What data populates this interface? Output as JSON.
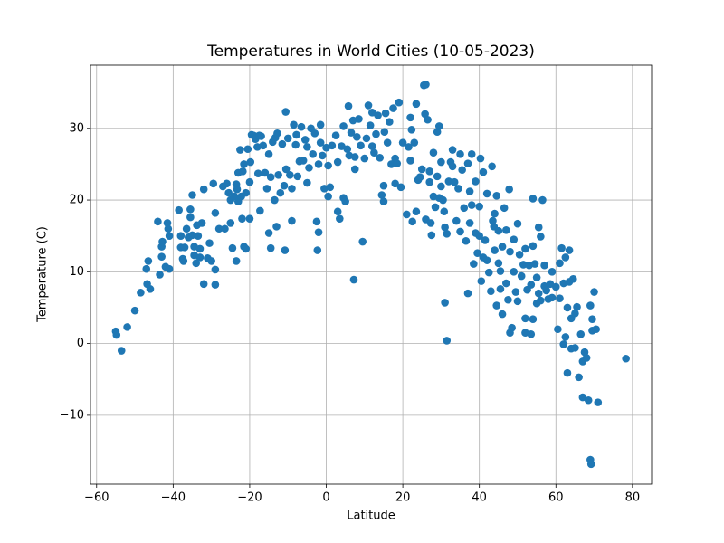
{
  "chart_data": {
    "type": "scatter",
    "title": "Temperatures in World Cities (10-05-2023)",
    "x_label": "Latitude",
    "y_label": "Temperature (C)",
    "color": "#1f77b4",
    "grid": true,
    "xlim": [
      -61.6,
      85.0
    ],
    "ylim": [
      -19.6,
      38.8
    ],
    "xticks": [
      {
        "value": -60,
        "label": "−60"
      },
      {
        "value": -40,
        "label": "−40"
      },
      {
        "value": -20,
        "label": "−20"
      },
      0,
      20,
      40,
      60,
      80
    ],
    "yticks": [
      {
        "value": -10,
        "label": "−10"
      },
      0,
      10,
      20,
      30
    ],
    "x": [
      -55,
      -54.8,
      -53.5,
      -52,
      -50,
      -48.5,
      -47,
      -46.8,
      -46.5,
      -46,
      -44,
      -43.5,
      -43,
      -43,
      -42.8,
      -42,
      -41.5,
      -41.3,
      -41,
      -41,
      -38.5,
      -38,
      -38,
      -37.5,
      -37.3,
      -37,
      -36.5,
      -36,
      -35.5,
      -35.5,
      -35,
      -35,
      -34.5,
      -34.5,
      -34,
      -33.8,
      -33.5,
      -33,
      -33,
      -32.5,
      -32,
      -32,
      -31,
      -30.5,
      -30,
      -29.5,
      -29,
      -29,
      -29,
      -28,
      -27,
      -26.5,
      -26,
      -25.5,
      -25,
      -25,
      -24.5,
      -24,
      -23.5,
      -23.5,
      -23.3,
      -23,
      -23,
      -22.5,
      -22.2,
      -22,
      -21.8,
      -21.5,
      -21.5,
      -21,
      -21,
      -20.5,
      -20,
      -20,
      -19.8,
      -19.5,
      -19,
      -18.5,
      -18,
      -17.8,
      -17.5,
      -17.3,
      -17,
      -16.5,
      -16,
      -15.5,
      -15,
      -15,
      -14.5,
      -14.5,
      -14,
      -13.5,
      -13.3,
      -13,
      -12.8,
      -12.5,
      -12,
      -11.5,
      -11,
      -10.8,
      -10.6,
      -10.5,
      -10,
      -9.5,
      -9,
      -9,
      -8.5,
      -8,
      -7.8,
      -7.5,
      -7,
      -6.5,
      -6,
      -5.5,
      -5,
      -5,
      -4.5,
      -4,
      -3.5,
      -3,
      -2.5,
      -2.3,
      -2,
      -2,
      -1.5,
      -1.5,
      -1,
      -0.5,
      0,
      0.5,
      0.5,
      1,
      1.5,
      2.5,
      3,
      3,
      3.5,
      4,
      4.5,
      4.5,
      5,
      5.5,
      5.8,
      6,
      6.5,
      7,
      7.2,
      7.5,
      7.5,
      8,
      8.5,
      9,
      9.5,
      10,
      10.5,
      11,
      11.5,
      12,
      12,
      12.5,
      13,
      13.5,
      14,
      14.5,
      15,
      15,
      15.2,
      15.5,
      16,
      16.5,
      17,
      17.5,
      18,
      18,
      18.5,
      19,
      19.5,
      20,
      21,
      21.5,
      22,
      22,
      22.3,
      22.5,
      23,
      23.5,
      23.5,
      24,
      24.5,
      25,
      25.5,
      25.8,
      26,
      26,
      26.5,
      27,
      27,
      27.3,
      27.5,
      28,
      28,
      28.5,
      29,
      29,
      29.5,
      29.5,
      30,
      30,
      30.5,
      30.8,
      31,
      31,
      31.5,
      31.5,
      32,
      32.5,
      33,
      33,
      33.5,
      34,
      34.5,
      35,
      35,
      35.5,
      36,
      36.5,
      37,
      37,
      37.5,
      37.5,
      38,
      38,
      38.5,
      39,
      39,
      39.5,
      40,
      40,
      40.3,
      40.5,
      41,
      41,
      41.5,
      42,
      42,
      42.5,
      43,
      43.3,
      43.5,
      43.8,
      44,
      44,
      44.5,
      44.5,
      45,
      45,
      45.5,
      45.5,
      46,
      46,
      46.5,
      47,
      47,
      47.5,
      47.8,
      48,
      48,
      48.5,
      49,
      49,
      49.5,
      50,
      50,
      50.5,
      51,
      51.5,
      52,
      52,
      52,
      52.5,
      53,
      53.5,
      53.5,
      54,
      54,
      54,
      54.5,
      55,
      55,
      55.5,
      55.5,
      56,
      56,
      56.5,
      57,
      57,
      57.5,
      58,
      58.5,
      59,
      59,
      60,
      60.5,
      61,
      61,
      61.5,
      62,
      62,
      62.5,
      62.5,
      63,
      63,
      63.5,
      63.5,
      64,
      64,
      64.5,
      65,
      65,
      65.5,
      66,
      66.5,
      67,
      67,
      67.5,
      68,
      68.5,
      69,
      69.2,
      69,
      69.5,
      69.5,
      70,
      70.5,
      71,
      78.3
    ],
    "values": [
      1.7,
      1.2,
      -1,
      2.3,
      4.6,
      7.1,
      10.4,
      8.3,
      11.5,
      7.6,
      17,
      9.6,
      12.1,
      13.5,
      14.2,
      10.7,
      16.8,
      16,
      10.4,
      15,
      18.6,
      15,
      13.4,
      11.8,
      11.5,
      13.4,
      16,
      14.8,
      18.7,
      17.6,
      20.7,
      15.1,
      12.3,
      13.5,
      11.2,
      16.5,
      15,
      13.2,
      12,
      16.8,
      8.3,
      21.5,
      11.9,
      14,
      11.5,
      22.3,
      18.2,
      10.3,
      8.2,
      16,
      21.9,
      16,
      22.3,
      21,
      20,
      16.8,
      13.3,
      20.5,
      22.2,
      11.5,
      21.5,
      23.8,
      19.8,
      27,
      20.5,
      17.4,
      24,
      13.5,
      25,
      13.2,
      21,
      27.1,
      17.4,
      22.5,
      25.3,
      29.1,
      29,
      28.5,
      27.4,
      23.7,
      29,
      18.5,
      28.9,
      27.6,
      23.8,
      21.6,
      26.4,
      15.4,
      13.3,
      23.2,
      28.1,
      20,
      28.7,
      16.3,
      29.3,
      23.5,
      21,
      27.8,
      22,
      13,
      32.3,
      24.3,
      28.6,
      23.5,
      21.6,
      17.1,
      30.5,
      27.7,
      29.1,
      23.3,
      25.4,
      30.2,
      25.5,
      28.4,
      22.4,
      27.4,
      24.5,
      30,
      26.4,
      29.3,
      17,
      13,
      15.5,
      25,
      28,
      30.5,
      26.2,
      21.6,
      27.3,
      20.5,
      24.8,
      21.8,
      27.6,
      29,
      25.3,
      18.4,
      17.4,
      27.5,
      20.3,
      30.3,
      19.8,
      27.1,
      33.1,
      26.2,
      29.4,
      31.1,
      8.9,
      24.3,
      26,
      28.8,
      31.3,
      27.6,
      14.2,
      25.8,
      28.6,
      33.2,
      30.4,
      27.5,
      32.2,
      26.6,
      29.2,
      31.8,
      25.9,
      20.7,
      22,
      19.8,
      29.5,
      32.1,
      28,
      30.9,
      25,
      32.8,
      25.8,
      22.3,
      25.1,
      33.6,
      21.8,
      28,
      18,
      27.4,
      25.5,
      31.5,
      29.8,
      17,
      28,
      18.4,
      33.4,
      22.8,
      23.2,
      24.3,
      36,
      32,
      36.1,
      17.3,
      31.2,
      24,
      22.5,
      16.8,
      15.1,
      26.6,
      20.5,
      19,
      29.5,
      23.3,
      30.3,
      20.3,
      25.3,
      21.9,
      20,
      18.4,
      5.7,
      16.2,
      0.4,
      15.3,
      22.6,
      25.3,
      27,
      24.7,
      22.5,
      17.1,
      21.6,
      15.6,
      26.4,
      24.2,
      18.9,
      14.3,
      25.1,
      7,
      16.8,
      21.2,
      19.3,
      26.4,
      11.1,
      15.4,
      22.6,
      12.6,
      19.1,
      15,
      25.8,
      8.7,
      12,
      23.9,
      14.4,
      11.6,
      20.9,
      9.9,
      7.3,
      24.7,
      17.1,
      16.3,
      13,
      18.1,
      5.3,
      20.6,
      11.2,
      15.7,
      7.6,
      10.1,
      4.1,
      13.5,
      18.9,
      8.4,
      15.8,
      6.1,
      21.5,
      12.8,
      1.5,
      2.2,
      14.5,
      10,
      7.2,
      16.7,
      5.9,
      12.4,
      9.4,
      11,
      3.5,
      13.2,
      1.5,
      7.5,
      10.9,
      1.3,
      8.2,
      20.2,
      3.4,
      13.6,
      11.1,
      5.6,
      9.2,
      16.2,
      7,
      14.9,
      6,
      20,
      10.9,
      8,
      7.4,
      6.2,
      8.3,
      6.4,
      10,
      7.9,
      2,
      11.2,
      6.3,
      13.3,
      8.4,
      -0.1,
      0.9,
      12,
      -4.1,
      5,
      8.6,
      13,
      3.5,
      -0.7,
      9,
      4.2,
      -0.6,
      5.1,
      -4.7,
      1.3,
      -7.5,
      -2.5,
      -1.2,
      -2,
      -7.9,
      -16.2,
      -16.8,
      5.3,
      3.4,
      1.8,
      7.2,
      2,
      -8.2,
      -2.1
    ]
  }
}
